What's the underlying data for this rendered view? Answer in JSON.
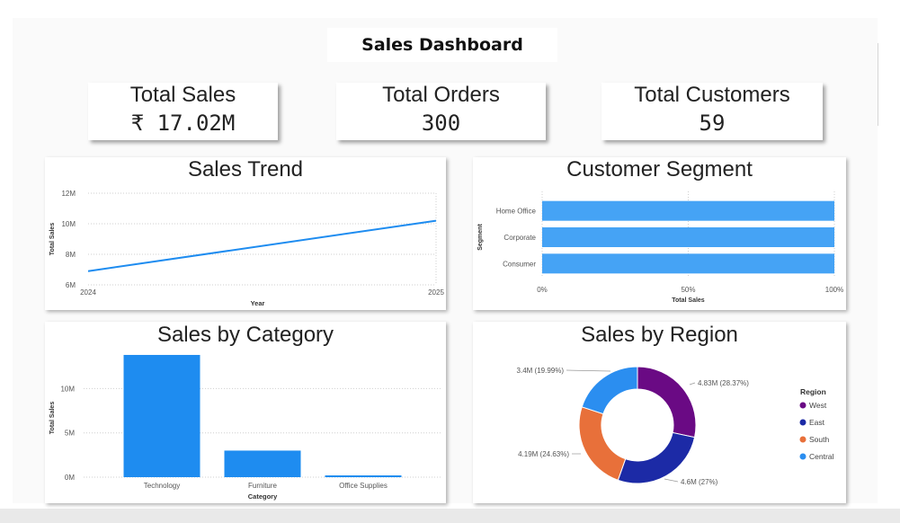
{
  "dashboard": {
    "title": "Sales Dashboard"
  },
  "kpis": {
    "total_sales": {
      "label": "Total Sales",
      "value": "₹ 17.02M"
    },
    "total_orders": {
      "label": "Total Orders",
      "value": "300"
    },
    "total_customers": {
      "label": "Total Customers",
      "value": "59"
    }
  },
  "colors": {
    "accent": "#1e8cf0",
    "segment_bar": "#45a3f5",
    "west": "#6a0a84",
    "east": "#1c2aa6",
    "south": "#e8703a",
    "central": "#2b8ef0"
  },
  "chart_data": [
    {
      "type": "line",
      "title": "Sales Trend",
      "xlabel": "Year",
      "ylabel": "Total Sales",
      "x": [
        "2024",
        "2025"
      ],
      "values": [
        6.9,
        10.2
      ],
      "yticks": [
        "6M",
        "8M",
        "10M",
        "12M"
      ],
      "ylim": [
        6,
        12
      ],
      "grid": true
    },
    {
      "type": "bar",
      "orientation": "horizontal",
      "title": "Customer Segment",
      "xlabel": "Total Sales",
      "ylabel": "Segment",
      "categories": [
        "Home Office",
        "Corporate",
        "Consumer"
      ],
      "values": [
        100,
        100,
        100
      ],
      "xticks": [
        "0%",
        "50%",
        "100%"
      ],
      "xlim": [
        0,
        100
      ],
      "grid": true
    },
    {
      "type": "bar",
      "title": "Sales by Category",
      "xlabel": "Category",
      "ylabel": "Total Sales",
      "categories": [
        "Technology",
        "Furniture",
        "Office Supplies"
      ],
      "values": [
        13.8,
        3.0,
        0.2
      ],
      "yticks": [
        "0M",
        "5M",
        "10M"
      ],
      "ylim": [
        0,
        14
      ],
      "grid": true
    },
    {
      "type": "pie",
      "title": "Sales by Region",
      "legend_title": "Region",
      "legend_position": "right",
      "slices": [
        {
          "name": "West",
          "value": 4.83,
          "pct": 28.37,
          "label": "4.83M (28.37%)"
        },
        {
          "name": "East",
          "value": 4.6,
          "pct": 27,
          "label": "4.6M (27%)"
        },
        {
          "name": "South",
          "value": 4.19,
          "pct": 24.63,
          "label": "4.19M (24.63%)"
        },
        {
          "name": "Central",
          "value": 3.4,
          "pct": 19.99,
          "label": "3.4M (19.99%)"
        }
      ]
    }
  ]
}
